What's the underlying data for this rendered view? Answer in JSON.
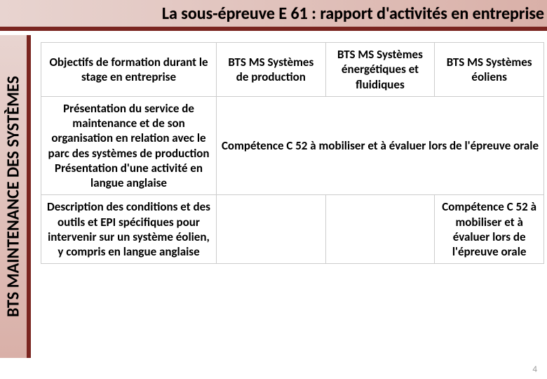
{
  "title": "La sous-épreuve E 61 : rapport d'activités en entreprise",
  "sidebar": "BTS MAINTENANCE DES SYSTÈMES",
  "table": {
    "header": {
      "objectives": "Objectifs de formation durant le stage en entreprise",
      "col1": "BTS MS Systèmes de production",
      "col2": "BTS MS Systèmes énergétiques et fluidiques",
      "col3": "BTS MS Systèmes éoliens"
    },
    "row1": {
      "label": "Présentation du service de maintenance et de son organisation en relation avec le parc des systèmes de production\nPrésentation d'une activité en langue anglaise",
      "merged": "Compétence C 52 à mobiliser et à évaluer lors de l'épreuve orale"
    },
    "row2": {
      "label": "Description des conditions et des outils et EPI spécifiques pour intervenir sur un système éolien, y compris en langue anglaise",
      "cell3": "Compétence C 52 à mobiliser et à évaluer lors de l'épreuve orale"
    }
  },
  "page_number": "4",
  "colors": {
    "accent": "#7a2520",
    "grad_light": "#e8d4d0",
    "grad_dark": "#d9b0a8"
  }
}
